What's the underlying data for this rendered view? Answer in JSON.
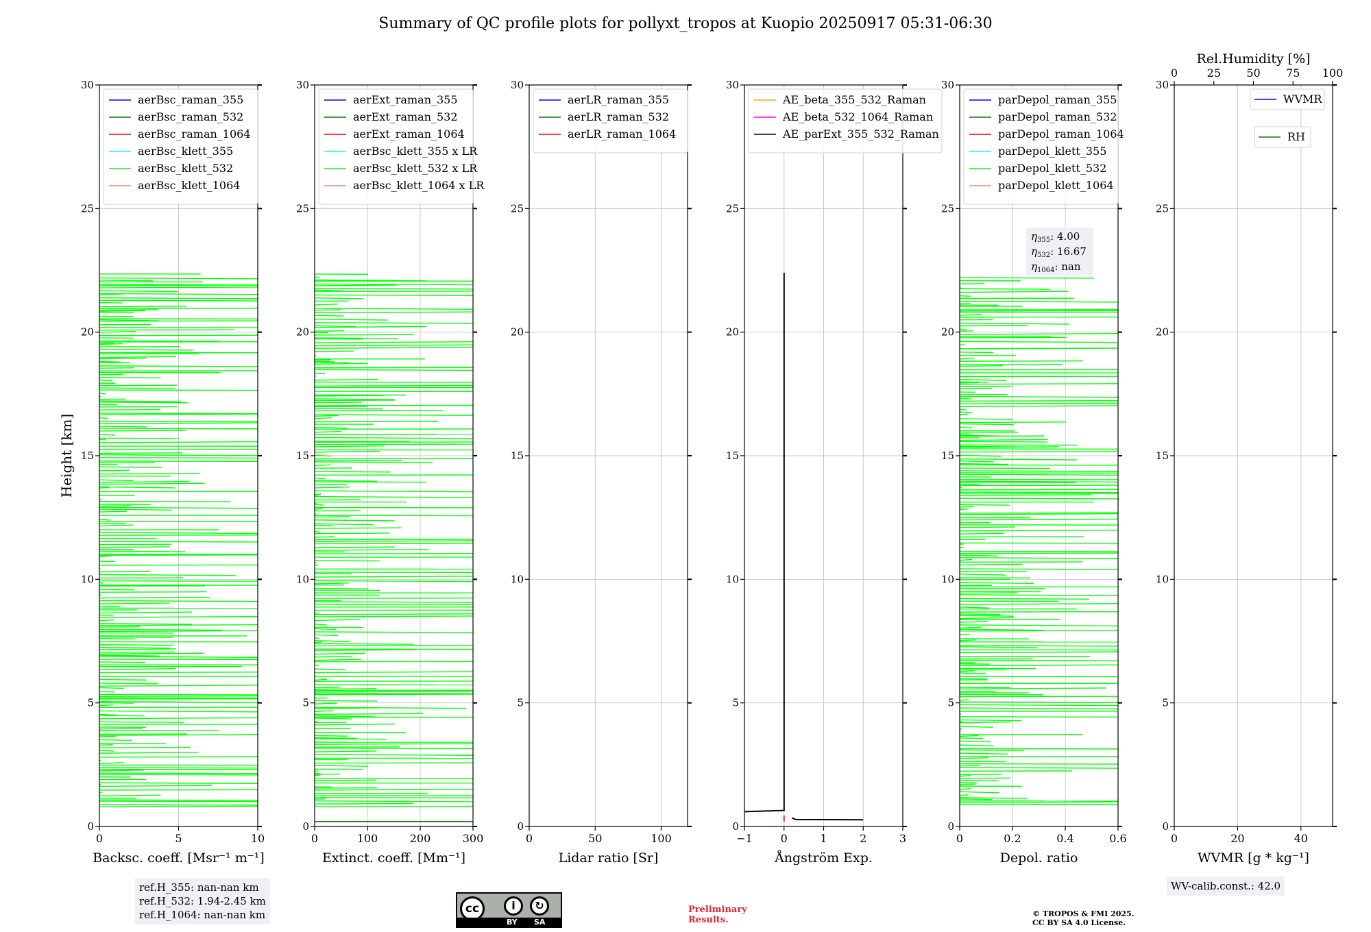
{
  "title": "Summary of QC profile plots for pollyxt_tropos at Kuopio 20250917 05:31-06:30",
  "ylabel": "Height [km]",
  "ref_box": [
    "ref.H_355: nan-nan km",
    "ref.H_532: 1.94-2.45 km",
    "ref.H_1064: nan-nan km"
  ],
  "wv_box": "WV-calib.const.: 42.0",
  "preliminary": [
    "Preliminary",
    "Results."
  ],
  "copyright": [
    "© TROPOS & FMI 2025.",
    "CC BY SA 4.0 License."
  ],
  "license_badge": {
    "left": "BY",
    "right": "SA"
  },
  "colors": {
    "blue": "#0000ff",
    "green": "#008000",
    "red": "#ff0000",
    "cyan": "#00ffff",
    "lime": "#00ff00",
    "salmon": "#fa8072",
    "orange": "#ffa500",
    "magenta": "#ff00ff",
    "black": "#000000"
  },
  "chart_data": [
    {
      "type": "line",
      "xlabel": "Backsc. coeff. [Msr⁻¹ m⁻¹]",
      "xlim": [
        0,
        10
      ],
      "xticks": [
        0,
        5,
        10
      ],
      "ylim": [
        0,
        30
      ],
      "yticks": [
        0,
        5,
        10,
        15,
        20,
        25,
        30
      ],
      "legend": "top-left",
      "series": [
        {
          "name": "aerBsc_raman_355",
          "color": "#0000ff"
        },
        {
          "name": "aerBsc_raman_532",
          "color": "#008000"
        },
        {
          "name": "aerBsc_raman_1064",
          "color": "#ff0000"
        },
        {
          "name": "aerBsc_klett_355",
          "color": "#00ffff"
        },
        {
          "name": "aerBsc_klett_532",
          "color": "#00ff00"
        },
        {
          "name": "aerBsc_klett_1064",
          "color": "#fa8072"
        }
      ],
      "noisy_series": {
        "color": "#00ff00",
        "y_range": [
          0.8,
          22.4
        ],
        "layers": [
          [
            0.8,
            4.8
          ],
          [
            4.8,
            7.0
          ],
          [
            7.0,
            12.2
          ],
          [
            12.2,
            22.4
          ]
        ],
        "seed": 11,
        "max": 10
      }
    },
    {
      "type": "line",
      "xlabel": "Extinct. coeff. [Mm⁻¹]",
      "xlim": [
        0,
        300
      ],
      "xticks": [
        0,
        100,
        200,
        300
      ],
      "ylim": [
        0,
        30
      ],
      "yticks": [
        0,
        5,
        10,
        15,
        20,
        25,
        30
      ],
      "legend": "top-left",
      "series": [
        {
          "name": "aerExt_raman_355",
          "color": "#0000ff"
        },
        {
          "name": "aerExt_raman_532",
          "color": "#008000"
        },
        {
          "name": "aerExt_raman_1064",
          "color": "#ff0000"
        },
        {
          "name": "aerBsc_klett_355 x LR",
          "color": "#00ffff"
        },
        {
          "name": "aerBsc_klett_532 x LR",
          "color": "#00ff00"
        },
        {
          "name": "aerBsc_klett_1064 x LR",
          "color": "#fa8072"
        }
      ],
      "noisy_series": {
        "color": "#00ff00",
        "y_range": [
          0.8,
          22.4
        ],
        "layers": [
          [
            0.8,
            4.8
          ],
          [
            4.8,
            7.0
          ],
          [
            7.0,
            12.2
          ],
          [
            12.2,
            22.4
          ]
        ],
        "seed": 23,
        "max": 300
      },
      "extra_lines": [
        {
          "color": "#008000",
          "y": 0.2,
          "x0": 0,
          "x1": 300
        }
      ]
    },
    {
      "type": "line",
      "xlabel": "Lidar ratio [Sr]",
      "xlim": [
        0,
        120
      ],
      "xticks": [
        0,
        50,
        100
      ],
      "ylim": [
        0,
        30
      ],
      "yticks": [
        0,
        5,
        10,
        15,
        20,
        25,
        30
      ],
      "legend": "top-left",
      "series": [
        {
          "name": "aerLR_raman_355",
          "color": "#0000ff"
        },
        {
          "name": "aerLR_raman_532",
          "color": "#008000"
        },
        {
          "name": "aerLR_raman_1064",
          "color": "#ff0000"
        }
      ]
    },
    {
      "type": "line",
      "xlabel": "Ångström Exp.",
      "xlim": [
        -1,
        3
      ],
      "xticks": [
        -1,
        0,
        1,
        2,
        3
      ],
      "ylim": [
        0,
        30
      ],
      "yticks": [
        0,
        5,
        10,
        15,
        20,
        25,
        30
      ],
      "legend": "top-left",
      "series": [
        {
          "name": "AE_beta_355_532_Raman",
          "color": "#ffa500"
        },
        {
          "name": "AE_beta_532_1064_Raman",
          "color": "#ff00ff"
        },
        {
          "name": "AE_parExt_355_532_Raman",
          "color": "#000000"
        }
      ],
      "profiles": [
        {
          "color": "#000000",
          "points": [
            [
              -1,
              0.6
            ],
            [
              0,
              0.65
            ],
            [
              0,
              22.4
            ]
          ]
        },
        {
          "color": "#000000",
          "points": [
            [
              0.2,
              0.35
            ],
            [
              0.3,
              0.28
            ],
            [
              2.0,
              0.27
            ]
          ]
        },
        {
          "color": "#ff00ff",
          "points": [
            [
              0,
              0.2
            ],
            [
              0,
              0.45
            ]
          ]
        }
      ]
    },
    {
      "type": "line",
      "xlabel": "Depol. ratio",
      "xlim": [
        0,
        0.6
      ],
      "xticks": [
        0.0,
        0.2,
        0.4,
        0.6
      ],
      "ylim": [
        0,
        30
      ],
      "yticks": [
        0,
        5,
        10,
        15,
        20,
        25,
        30
      ],
      "legend": "top-left",
      "series": [
        {
          "name": "parDepol_raman_355",
          "color": "#0000ff"
        },
        {
          "name": "parDepol_raman_532",
          "color": "#008000"
        },
        {
          "name": "parDepol_raman_1064",
          "color": "#ff0000"
        },
        {
          "name": "parDepol_klett_355",
          "color": "#00ffff"
        },
        {
          "name": "parDepol_klett_532",
          "color": "#00ff00"
        },
        {
          "name": "parDepol_klett_1064",
          "color": "#fa8072"
        }
      ],
      "noisy_series": {
        "color": "#00ff00",
        "y_range": [
          0.9,
          22.3
        ],
        "layers": [
          [
            0.9,
            22.3
          ]
        ],
        "seed": 37,
        "max": 0.6
      },
      "annotation": [
        "η",
        "355",
        ": 4.00",
        "532",
        ": 16.67",
        "1064",
        ": nan"
      ]
    },
    {
      "type": "line",
      "xlabel": "WVMR [g * kg⁻¹]",
      "xlim": [
        0,
        50
      ],
      "xticks": [
        0,
        20,
        40
      ],
      "ylim": [
        0,
        30
      ],
      "yticks": [
        0,
        5,
        10,
        15,
        20,
        25,
        30
      ],
      "x2label": "Rel.Humidity [%]",
      "x2lim": [
        0,
        100
      ],
      "x2ticks": [
        0,
        25,
        50,
        75,
        100
      ],
      "legend": "top-right",
      "series": [
        {
          "name": "WVMR",
          "color": "#0000ff"
        },
        {
          "name": "RH",
          "color": "#008000"
        }
      ]
    }
  ]
}
